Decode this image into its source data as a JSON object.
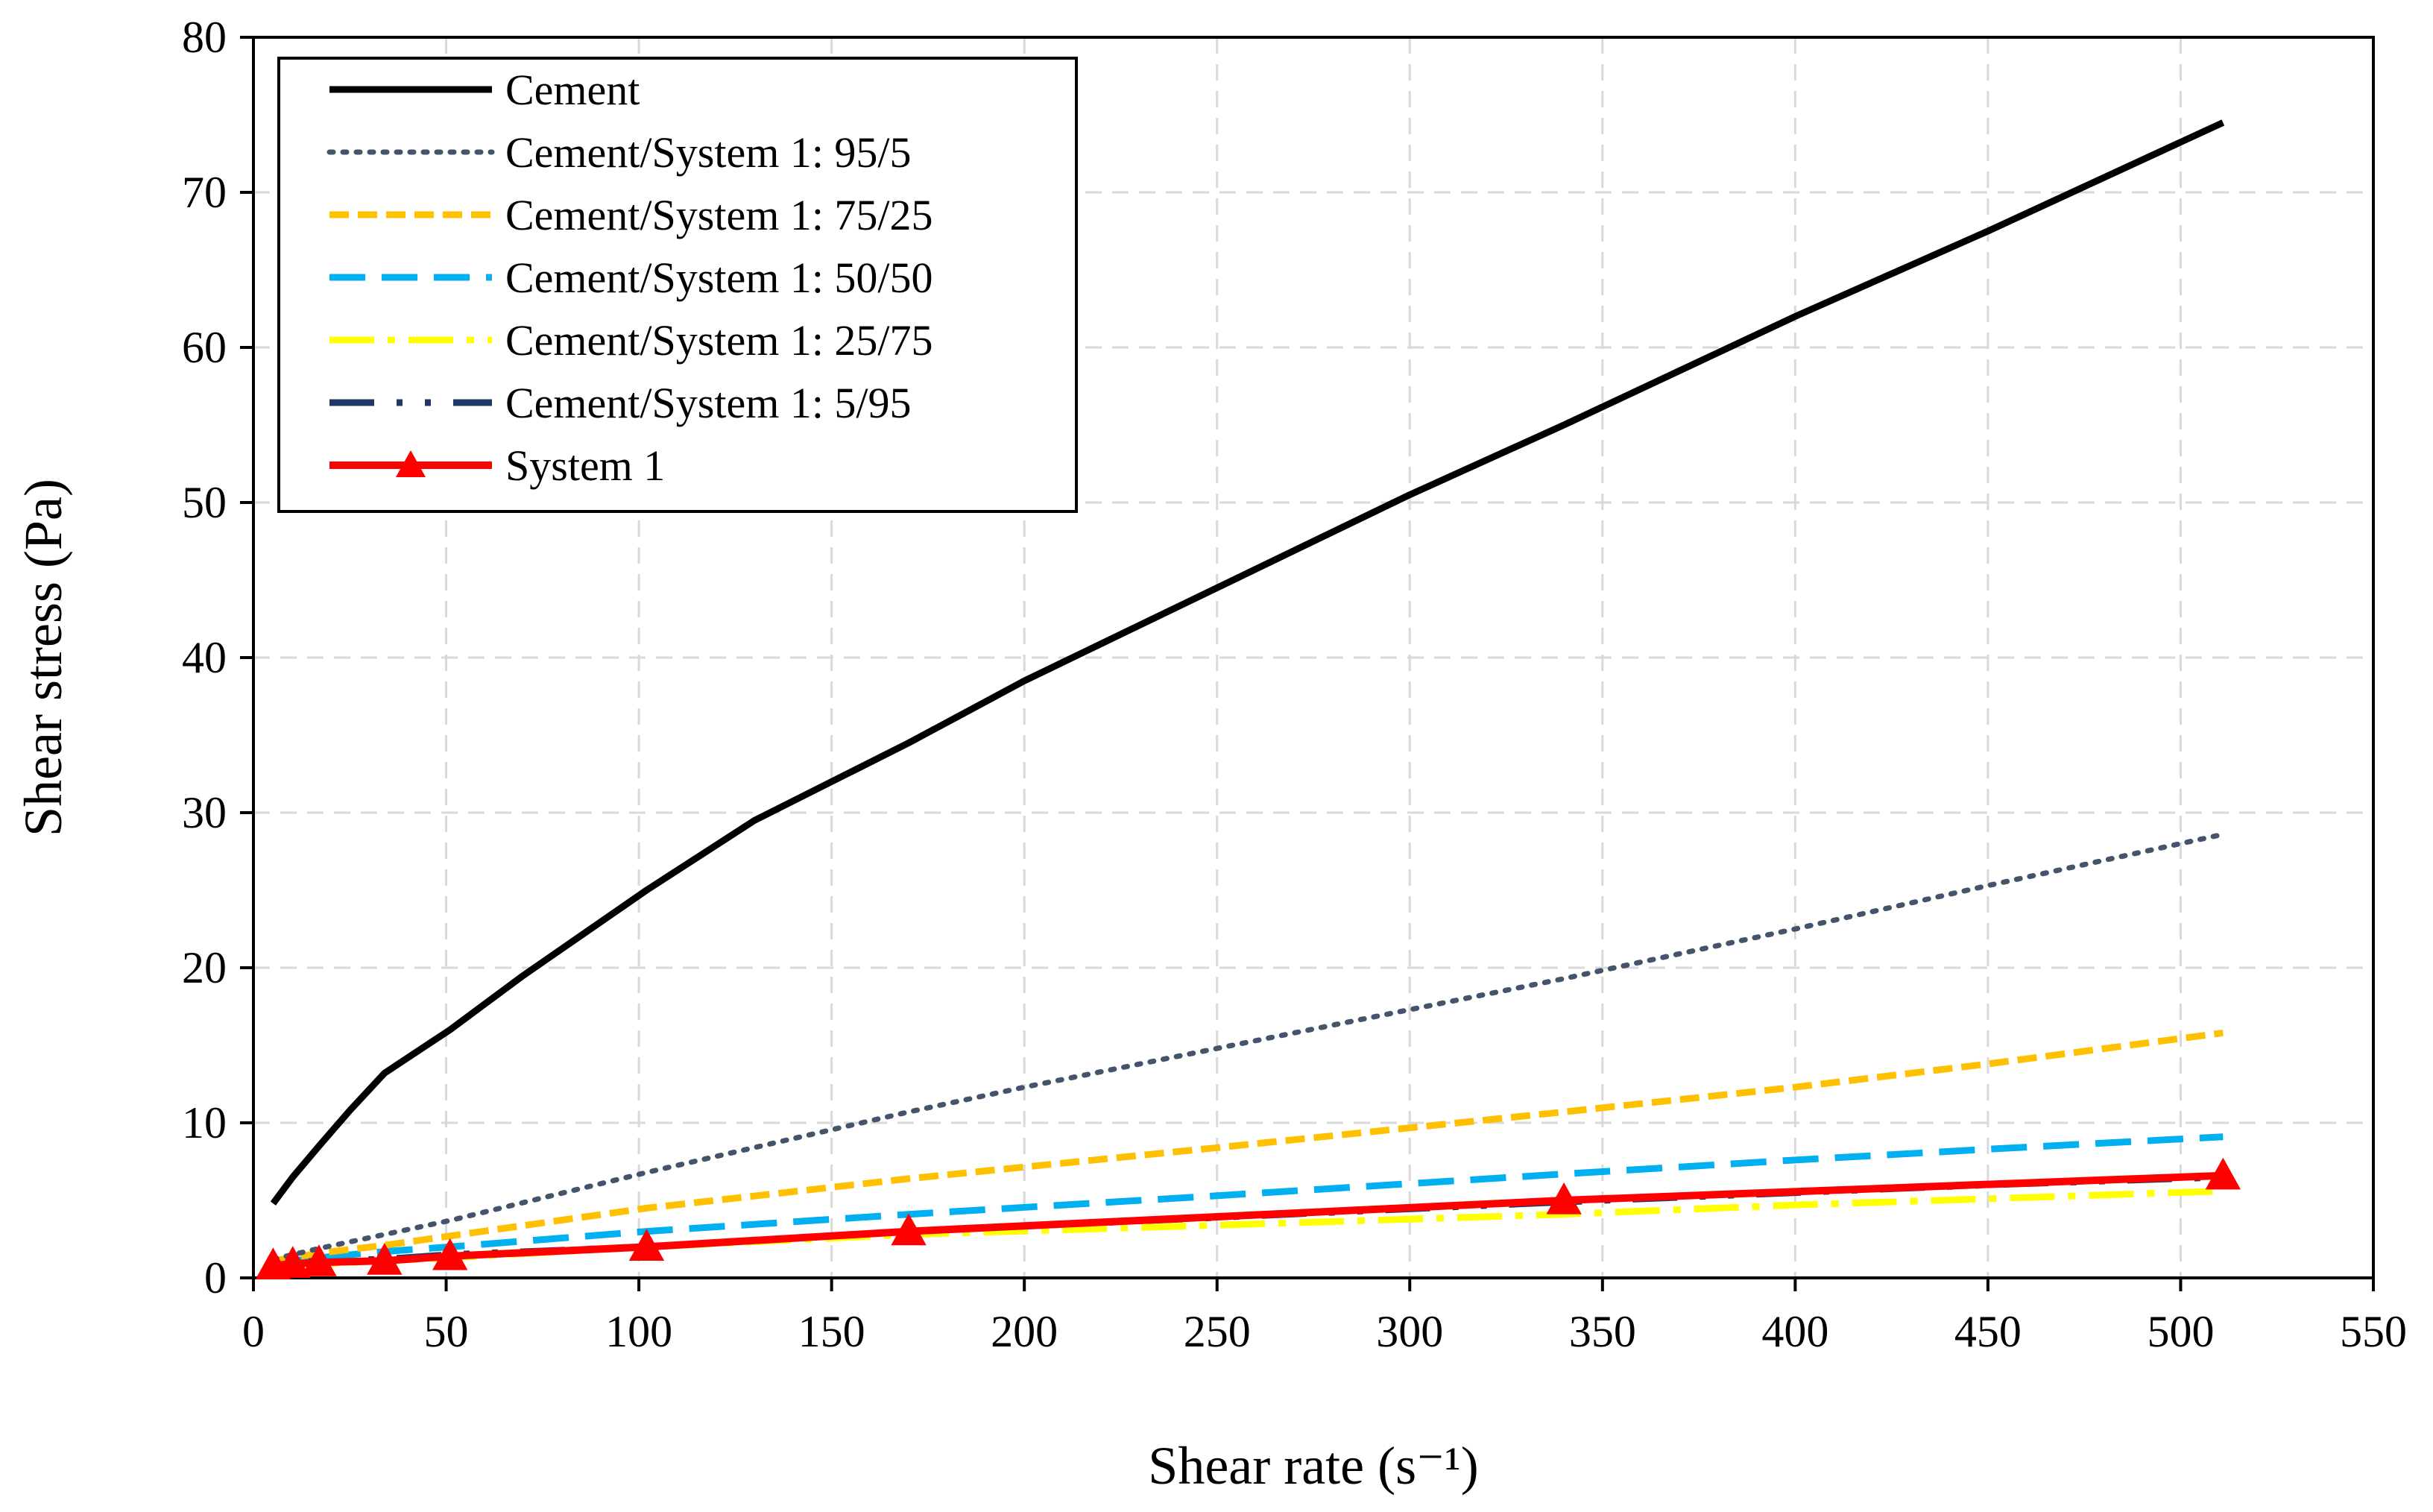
{
  "chart_data": {
    "type": "line",
    "title": "",
    "xlabel": "Shear rate (s⁻¹)",
    "ylabel": "Shear stress (Pa)",
    "xlim": [
      0,
      550
    ],
    "ylim": [
      0,
      80
    ],
    "xticks": [
      "0",
      "50",
      "100",
      "150",
      "200",
      "250",
      "300",
      "350",
      "400",
      "450",
      "500",
      "550"
    ],
    "yticks": [
      "0",
      "10",
      "20",
      "30",
      "40",
      "50",
      "60",
      "70",
      "80"
    ],
    "grid": true,
    "legend_position": "top-left",
    "series": [
      {
        "name": "Cement",
        "color": "#000000",
        "style": "solid",
        "x": [
          5.1,
          10.2,
          17,
          25,
          34,
          51,
          70,
          102,
          130,
          170,
          200,
          250,
          300,
          340,
          400,
          450,
          511
        ],
        "y": [
          4.8,
          6.5,
          8.5,
          10.8,
          13.2,
          16.0,
          19.5,
          25.0,
          29.5,
          34.5,
          38.5,
          44.5,
          50.5,
          55.0,
          62.0,
          67.5,
          74.5
        ]
      },
      {
        "name": "Cement/System 1: 95/5",
        "color": "#44546a",
        "style": "dotted",
        "x": [
          5.1,
          10.2,
          17,
          34,
          51,
          102,
          170,
          200,
          250,
          300,
          340,
          400,
          450,
          511
        ],
        "y": [
          1.2,
          1.5,
          1.9,
          2.8,
          3.7,
          6.8,
          10.7,
          12.3,
          14.8,
          17.3,
          19.3,
          22.5,
          25.3,
          28.6
        ]
      },
      {
        "name": "Cement/System 1: 75/25",
        "color": "#ffc000",
        "style": "dashed",
        "x": [
          5.1,
          10.2,
          17,
          34,
          51,
          102,
          170,
          250,
          340,
          400,
          450,
          511
        ],
        "y": [
          1.1,
          1.3,
          1.6,
          2.1,
          2.7,
          4.5,
          6.4,
          8.4,
          10.7,
          12.3,
          13.8,
          15.8
        ]
      },
      {
        "name": "Cement/System 1: 50/50",
        "color": "#00b0f0",
        "style": "longdash",
        "x": [
          5.1,
          10.2,
          17,
          34,
          51,
          102,
          170,
          250,
          340,
          400,
          450,
          511
        ],
        "y": [
          1.0,
          1.1,
          1.3,
          1.7,
          2.0,
          3.0,
          4.1,
          5.3,
          6.7,
          7.6,
          8.3,
          9.1
        ]
      },
      {
        "name": "Cement/System 1: 25/75",
        "color": "#ffff00",
        "style": "dashdot",
        "x": [
          5.1,
          10.2,
          17,
          34,
          51,
          102,
          170,
          250,
          340,
          400,
          450,
          511
        ],
        "y": [
          0.7,
          0.8,
          0.9,
          1.1,
          1.3,
          2.0,
          2.8,
          3.4,
          4.1,
          4.7,
          5.1,
          5.6
        ]
      },
      {
        "name": "Cement/System 1: 5/95",
        "color": "#1f3864",
        "style": "dashdotdot",
        "x": [
          5.1,
          10.2,
          17,
          34,
          51,
          102,
          170,
          250,
          340,
          400,
          450,
          511
        ],
        "y": [
          0.9,
          1.0,
          1.1,
          1.2,
          1.5,
          2.0,
          3.0,
          3.9,
          4.9,
          5.5,
          6.0,
          6.5
        ]
      },
      {
        "name": "System 1",
        "color": "#ff0000",
        "style": "solid-triangle",
        "x": [
          5.1,
          10.2,
          17,
          34,
          51,
          102,
          170,
          340,
          511
        ],
        "y": [
          0.8,
          0.9,
          1.0,
          1.1,
          1.4,
          2.0,
          3.0,
          5.0,
          6.6
        ]
      }
    ]
  }
}
